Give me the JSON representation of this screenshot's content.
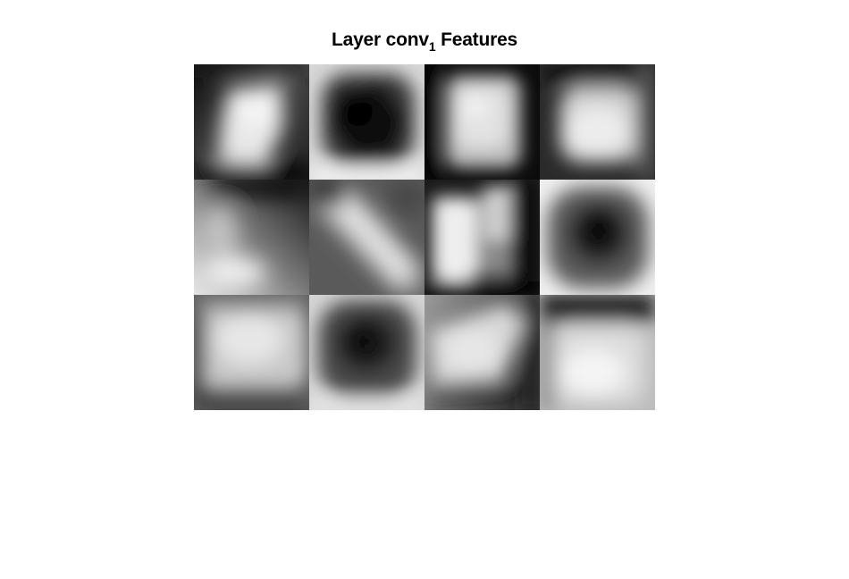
{
  "figure": {
    "title_prefix": "Layer conv",
    "title_subscript": "1",
    "title_suffix": " Features"
  },
  "colormap": "gray",
  "grid": {
    "rows": 3,
    "cols": 4
  },
  "tiles": [
    {
      "index": 1,
      "pattern": "bright-diagonal-diamond",
      "center_level": 0.9,
      "edge_level": 0.15
    },
    {
      "index": 2,
      "pattern": "dark-diagonal-blob",
      "center_level": 0.05,
      "edge_level": 0.95
    },
    {
      "index": 3,
      "pattern": "bright-square",
      "center_level": 0.88,
      "edge_level": 0.05
    },
    {
      "index": 4,
      "pattern": "bright-rounded-square",
      "center_level": 0.9,
      "edge_level": 0.12
    },
    {
      "index": 5,
      "pattern": "diagonal-gradient-bright-bottom-left",
      "center_level": 0.6,
      "edge_level": 0.1
    },
    {
      "index": 6,
      "pattern": "bright-diagonal-band",
      "center_level": 0.85,
      "edge_level": 0.2
    },
    {
      "index": 7,
      "pattern": "bright-left-vertical-band",
      "center_level": 0.9,
      "edge_level": 0.05
    },
    {
      "index": 8,
      "pattern": "dark-round-blob",
      "center_level": 0.05,
      "edge_level": 0.95
    },
    {
      "index": 9,
      "pattern": "bright-square-dark-bottom",
      "center_level": 0.85,
      "edge_level": 0.15
    },
    {
      "index": 10,
      "pattern": "dark-round-blob-small",
      "center_level": 0.03,
      "edge_level": 0.9
    },
    {
      "index": 11,
      "pattern": "bright-diagonal-dark-bottom",
      "center_level": 0.85,
      "edge_level": 0.15
    },
    {
      "index": 12,
      "pattern": "bright-lower-square-dark-top",
      "center_level": 0.92,
      "edge_level": 0.2
    }
  ]
}
